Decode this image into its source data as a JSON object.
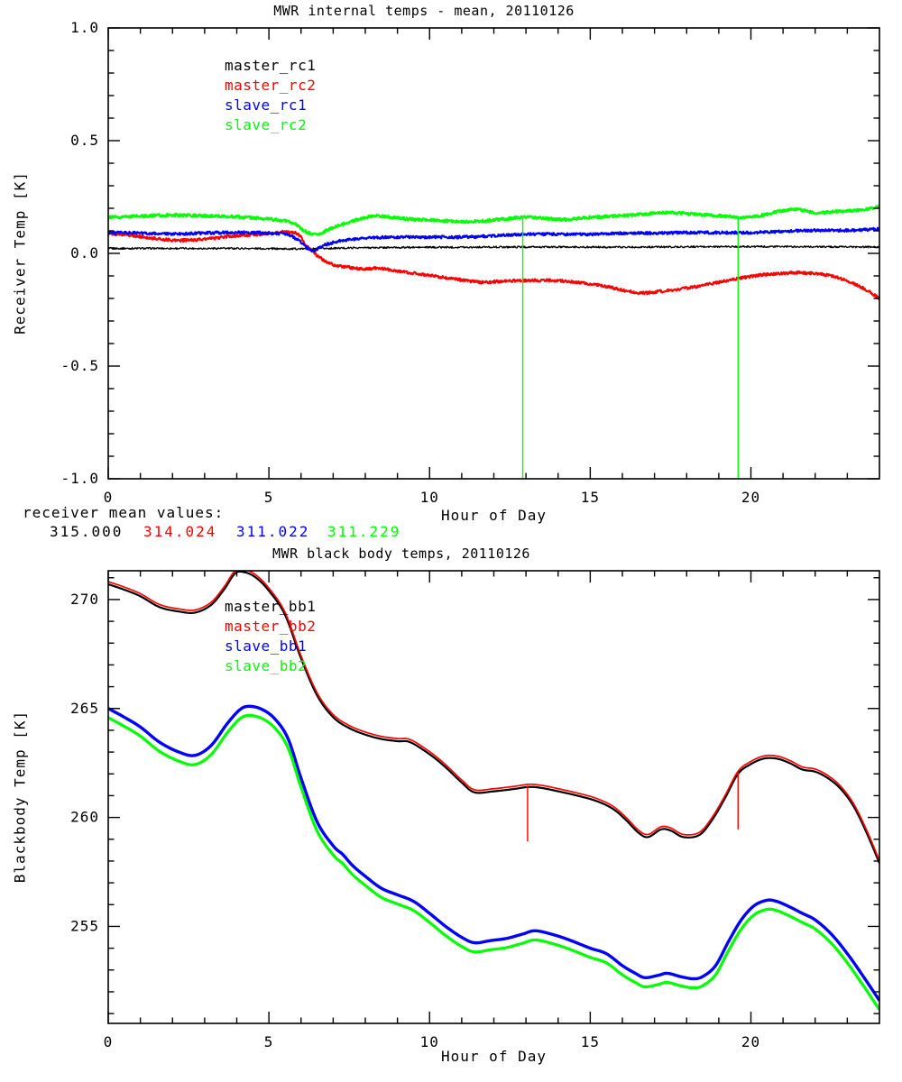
{
  "annotations": {
    "receiver_mean_label": "receiver mean values:",
    "receiver_means": [
      {
        "value": "315.000",
        "color": "#000000"
      },
      {
        "value": "314.024",
        "color": "#ff0000"
      },
      {
        "value": "311.022",
        "color": "#0000ff"
      },
      {
        "value": "311.229",
        "color": "#00ff00"
      }
    ]
  },
  "chart_data": [
    {
      "type": "line",
      "title": "MWR internal temps - mean, 20110126",
      "xlabel": "Hour of Day",
      "ylabel": "Receiver Temp [K]",
      "xlim": [
        0,
        24
      ],
      "ylim": [
        -1.0,
        1.0
      ],
      "x_major_ticks": [
        0,
        5,
        10,
        15,
        20
      ],
      "x_tick_labels": [
        "0",
        "5",
        "10",
        "15",
        "20"
      ],
      "x_minor_step": 1,
      "y_major_ticks": [
        -1.0,
        -0.5,
        0.0,
        0.5,
        1.0
      ],
      "y_tick_labels": [
        "-1.0",
        "-0.5",
        "0.0",
        "0.5",
        "1.0"
      ],
      "y_minor_step": 0.1,
      "grid": false,
      "legend_position": "upper-left-inside",
      "marker_lines": [
        {
          "x": 12.9,
          "y0": -1.0,
          "y1": 0.155,
          "color": "#00ff00"
        },
        {
          "x": 19.6,
          "y0": -1.0,
          "y1": 0.165,
          "color": "#00ff00"
        }
      ],
      "series": [
        {
          "name": "master_rc1",
          "color": "#000000",
          "noise": 0.004,
          "width": 1.3,
          "points": [
            [
              0,
              0.022
            ],
            [
              4,
              0.022
            ],
            [
              6,
              0.02
            ],
            [
              8,
              0.025
            ],
            [
              12,
              0.028
            ],
            [
              16,
              0.028
            ],
            [
              20,
              0.03
            ],
            [
              24,
              0.028
            ]
          ]
        },
        {
          "name": "master_rc2",
          "color": "#ff0000",
          "noise": 0.006,
          "width": 2.2,
          "points": [
            [
              0,
              0.088
            ],
            [
              0.7,
              0.08
            ],
            [
              1.5,
              0.065
            ],
            [
              2.2,
              0.058
            ],
            [
              3,
              0.063
            ],
            [
              4,
              0.078
            ],
            [
              4.8,
              0.085
            ],
            [
              5.5,
              0.095
            ],
            [
              5.9,
              0.085
            ],
            [
              6.2,
              0.03
            ],
            [
              6.6,
              -0.02
            ],
            [
              7,
              -0.05
            ],
            [
              7.5,
              -0.062
            ],
            [
              8,
              -0.07
            ],
            [
              8.4,
              -0.065
            ],
            [
              9,
              -0.078
            ],
            [
              9.6,
              -0.09
            ],
            [
              10.2,
              -0.102
            ],
            [
              11,
              -0.118
            ],
            [
              11.6,
              -0.128
            ],
            [
              12.2,
              -0.124
            ],
            [
              13,
              -0.12
            ],
            [
              13.8,
              -0.12
            ],
            [
              14.5,
              -0.127
            ],
            [
              15,
              -0.135
            ],
            [
              15.6,
              -0.15
            ],
            [
              16.2,
              -0.168
            ],
            [
              16.7,
              -0.175
            ],
            [
              17.2,
              -0.168
            ],
            [
              17.8,
              -0.158
            ],
            [
              18.4,
              -0.145
            ],
            [
              19,
              -0.128
            ],
            [
              19.6,
              -0.112
            ],
            [
              20.2,
              -0.098
            ],
            [
              20.8,
              -0.09
            ],
            [
              21.4,
              -0.086
            ],
            [
              22,
              -0.09
            ],
            [
              22.5,
              -0.1
            ],
            [
              23,
              -0.122
            ],
            [
              23.5,
              -0.155
            ],
            [
              24,
              -0.2
            ]
          ]
        },
        {
          "name": "slave_rc1",
          "color": "#0000ff",
          "noise": 0.006,
          "width": 2.2,
          "points": [
            [
              0,
              0.092
            ],
            [
              1,
              0.09
            ],
            [
              2,
              0.086
            ],
            [
              3,
              0.09
            ],
            [
              4,
              0.093
            ],
            [
              5,
              0.09
            ],
            [
              5.6,
              0.082
            ],
            [
              6,
              0.05
            ],
            [
              6.35,
              0.012
            ],
            [
              6.7,
              0.035
            ],
            [
              7.2,
              0.055
            ],
            [
              8,
              0.068
            ],
            [
              9,
              0.072
            ],
            [
              10,
              0.072
            ],
            [
              11,
              0.072
            ],
            [
              12,
              0.078
            ],
            [
              13,
              0.085
            ],
            [
              14,
              0.085
            ],
            [
              15,
              0.085
            ],
            [
              16,
              0.09
            ],
            [
              17,
              0.09
            ],
            [
              18,
              0.092
            ],
            [
              19,
              0.092
            ],
            [
              20,
              0.092
            ],
            [
              21,
              0.098
            ],
            [
              22,
              0.102
            ],
            [
              23,
              0.102
            ],
            [
              24,
              0.108
            ]
          ]
        },
        {
          "name": "slave_rc2",
          "color": "#00ff00",
          "noise": 0.006,
          "width": 2.4,
          "points": [
            [
              0,
              0.16
            ],
            [
              1,
              0.165
            ],
            [
              2,
              0.17
            ],
            [
              3,
              0.166
            ],
            [
              4,
              0.162
            ],
            [
              5,
              0.152
            ],
            [
              5.7,
              0.138
            ],
            [
              6.1,
              0.1
            ],
            [
              6.5,
              0.085
            ],
            [
              7,
              0.115
            ],
            [
              7.7,
              0.148
            ],
            [
              8.3,
              0.165
            ],
            [
              9,
              0.156
            ],
            [
              9.6,
              0.15
            ],
            [
              10.3,
              0.146
            ],
            [
              11,
              0.14
            ],
            [
              11.6,
              0.143
            ],
            [
              12.3,
              0.152
            ],
            [
              13,
              0.16
            ],
            [
              13.6,
              0.155
            ],
            [
              14.2,
              0.15
            ],
            [
              15,
              0.16
            ],
            [
              15.8,
              0.166
            ],
            [
              16.5,
              0.172
            ],
            [
              17,
              0.178
            ],
            [
              17.5,
              0.18
            ],
            [
              18,
              0.176
            ],
            [
              18.6,
              0.17
            ],
            [
              19.2,
              0.165
            ],
            [
              19.8,
              0.16
            ],
            [
              20.3,
              0.168
            ],
            [
              21,
              0.19
            ],
            [
              21.5,
              0.196
            ],
            [
              22,
              0.18
            ],
            [
              22.6,
              0.185
            ],
            [
              23.2,
              0.19
            ],
            [
              23.6,
              0.196
            ],
            [
              24,
              0.208
            ]
          ]
        }
      ]
    },
    {
      "type": "line",
      "title": "MWR black body temps, 20110126",
      "xlabel": "Hour of Day",
      "ylabel": "Blackbody Temp [K]",
      "xlim": [
        0,
        24
      ],
      "ylim": [
        250.55,
        271.32
      ],
      "x_major_ticks": [
        0,
        5,
        10,
        15,
        20
      ],
      "x_tick_labels": [
        "0",
        "5",
        "10",
        "15",
        "20"
      ],
      "x_minor_step": 1,
      "y_major_ticks": [
        255,
        260,
        265,
        270
      ],
      "y_tick_labels": [
        "255",
        "260",
        "265",
        "270"
      ],
      "y_minor_step": 1,
      "grid": false,
      "legend_position": "upper-left-inside",
      "marker_lines": [
        {
          "x": 13.05,
          "y0": 258.9,
          "y1": 261.45,
          "color": "#ff0000"
        },
        {
          "x": 19.6,
          "y0": 259.45,
          "y1": 262.05,
          "color": "#ff0000"
        }
      ],
      "series": [
        {
          "name": "master_bb1",
          "color": "#000000",
          "width": 2.2,
          "points": [
            [
              0,
              270.7
            ],
            [
              0.5,
              270.45
            ],
            [
              1,
              270.15
            ],
            [
              1.6,
              269.65
            ],
            [
              2.2,
              269.45
            ],
            [
              2.7,
              269.4
            ],
            [
              3.2,
              269.75
            ],
            [
              3.6,
              270.45
            ],
            [
              3.95,
              271.2
            ],
            [
              4.25,
              271.25
            ],
            [
              4.6,
              271.0
            ],
            [
              5,
              270.4
            ],
            [
              5.5,
              269.3
            ],
            [
              6,
              267.3
            ],
            [
              6.5,
              265.6
            ],
            [
              7,
              264.6
            ],
            [
              7.5,
              264.1
            ],
            [
              8,
              263.8
            ],
            [
              8.5,
              263.6
            ],
            [
              9,
              263.5
            ],
            [
              9.4,
              263.45
            ],
            [
              10,
              262.9
            ],
            [
              10.5,
              262.3
            ],
            [
              11,
              261.6
            ],
            [
              11.4,
              261.15
            ],
            [
              12,
              261.2
            ],
            [
              12.6,
              261.3
            ],
            [
              13.1,
              261.4
            ],
            [
              13.5,
              261.35
            ],
            [
              14,
              261.2
            ],
            [
              14.6,
              261.0
            ],
            [
              15.2,
              260.75
            ],
            [
              15.7,
              260.4
            ],
            [
              16.1,
              259.9
            ],
            [
              16.5,
              259.3
            ],
            [
              16.8,
              259.1
            ],
            [
              17.2,
              259.45
            ],
            [
              17.5,
              259.4
            ],
            [
              17.9,
              259.1
            ],
            [
              18.4,
              259.2
            ],
            [
              18.8,
              259.9
            ],
            [
              19.2,
              260.9
            ],
            [
              19.6,
              262.0
            ],
            [
              20,
              262.45
            ],
            [
              20.4,
              262.7
            ],
            [
              20.8,
              262.7
            ],
            [
              21.2,
              262.5
            ],
            [
              21.6,
              262.2
            ],
            [
              22,
              262.1
            ],
            [
              22.4,
              261.8
            ],
            [
              22.8,
              261.3
            ],
            [
              23.2,
              260.5
            ],
            [
              23.6,
              259.3
            ],
            [
              24,
              257.9
            ]
          ]
        },
        {
          "name": "master_bb2",
          "color": "#ff0000",
          "width": 1.7,
          "same_as": "master_bb1",
          "offset": 0.12
        },
        {
          "name": "slave_bb1",
          "color": "#0000ff",
          "width": 3.4,
          "points": [
            [
              0,
              265.0
            ],
            [
              0.5,
              264.6
            ],
            [
              1,
              264.15
            ],
            [
              1.6,
              263.45
            ],
            [
              2.2,
              263.0
            ],
            [
              2.7,
              262.85
            ],
            [
              3.2,
              263.3
            ],
            [
              3.7,
              264.3
            ],
            [
              4.1,
              264.95
            ],
            [
              4.4,
              265.1
            ],
            [
              4.8,
              264.95
            ],
            [
              5.2,
              264.5
            ],
            [
              5.6,
              263.6
            ],
            [
              6,
              261.8
            ],
            [
              6.5,
              259.8
            ],
            [
              7,
              258.7
            ],
            [
              7.3,
              258.3
            ],
            [
              7.6,
              257.8
            ],
            [
              8,
              257.3
            ],
            [
              8.5,
              256.75
            ],
            [
              9,
              256.45
            ],
            [
              9.5,
              256.15
            ],
            [
              10,
              255.6
            ],
            [
              10.5,
              255.0
            ],
            [
              11,
              254.5
            ],
            [
              11.4,
              254.25
            ],
            [
              11.9,
              254.35
            ],
            [
              12.4,
              254.45
            ],
            [
              12.9,
              254.65
            ],
            [
              13.3,
              254.8
            ],
            [
              13.9,
              254.6
            ],
            [
              14.4,
              254.35
            ],
            [
              15,
              254.0
            ],
            [
              15.5,
              253.75
            ],
            [
              16,
              253.2
            ],
            [
              16.4,
              252.85
            ],
            [
              16.7,
              252.65
            ],
            [
              17.1,
              252.75
            ],
            [
              17.4,
              252.85
            ],
            [
              17.8,
              252.7
            ],
            [
              18.2,
              252.6
            ],
            [
              18.5,
              252.7
            ],
            [
              18.9,
              253.2
            ],
            [
              19.3,
              254.3
            ],
            [
              19.7,
              255.3
            ],
            [
              20.1,
              255.95
            ],
            [
              20.5,
              256.2
            ],
            [
              20.8,
              256.15
            ],
            [
              21.2,
              255.9
            ],
            [
              21.6,
              255.6
            ],
            [
              22,
              255.3
            ],
            [
              22.5,
              254.65
            ],
            [
              23,
              253.75
            ],
            [
              23.5,
              252.7
            ],
            [
              24,
              251.6
            ]
          ]
        },
        {
          "name": "slave_bb2",
          "color": "#00ff00",
          "width": 3.2,
          "same_as": "slave_bb1",
          "offset": -0.42
        }
      ]
    }
  ]
}
